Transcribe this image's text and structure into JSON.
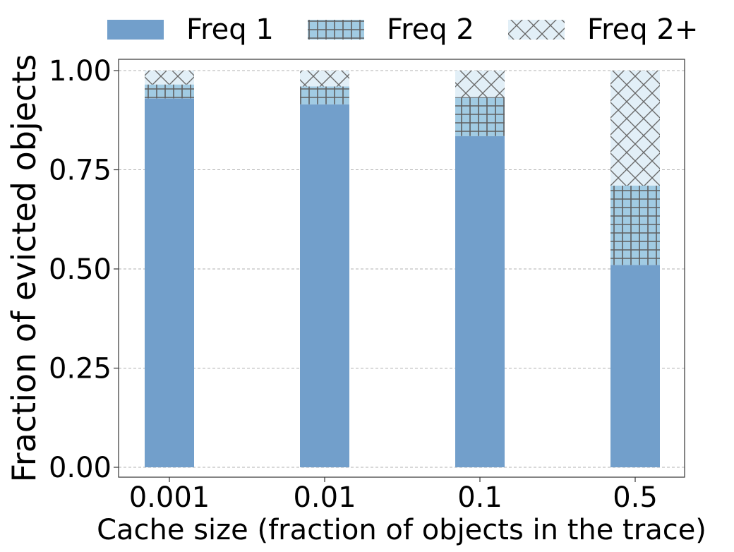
{
  "chart_data": {
    "type": "bar",
    "stacked": true,
    "title": "",
    "xlabel": "Cache size (fraction of objects in the trace)",
    "ylabel": "Fraction of evicted objects",
    "categories": [
      "0.001",
      "0.01",
      "0.1",
      "0.5"
    ],
    "series": [
      {
        "name": "Freq 1",
        "values": [
          0.93,
          0.915,
          0.835,
          0.51
        ],
        "color": "#729fcb",
        "pattern": "none"
      },
      {
        "name": "Freq 2",
        "values": [
          0.035,
          0.045,
          0.098,
          0.2
        ],
        "color": "#a1cbe3",
        "pattern": "grid"
      },
      {
        "name": "Freq 2+",
        "values": [
          0.035,
          0.04,
          0.067,
          0.29
        ],
        "color": "#e2eff7",
        "pattern": "crosshatch"
      }
    ],
    "ylim": [
      0,
      1.0
    ],
    "yticks": [
      "0.00",
      "0.25",
      "0.50",
      "0.75",
      "1.00"
    ],
    "grid": "y-dashed",
    "legend_position": "top",
    "hatch_color": "#5f5f5f",
    "axis_color": "#333333",
    "grid_color": "#b0b0b0"
  }
}
